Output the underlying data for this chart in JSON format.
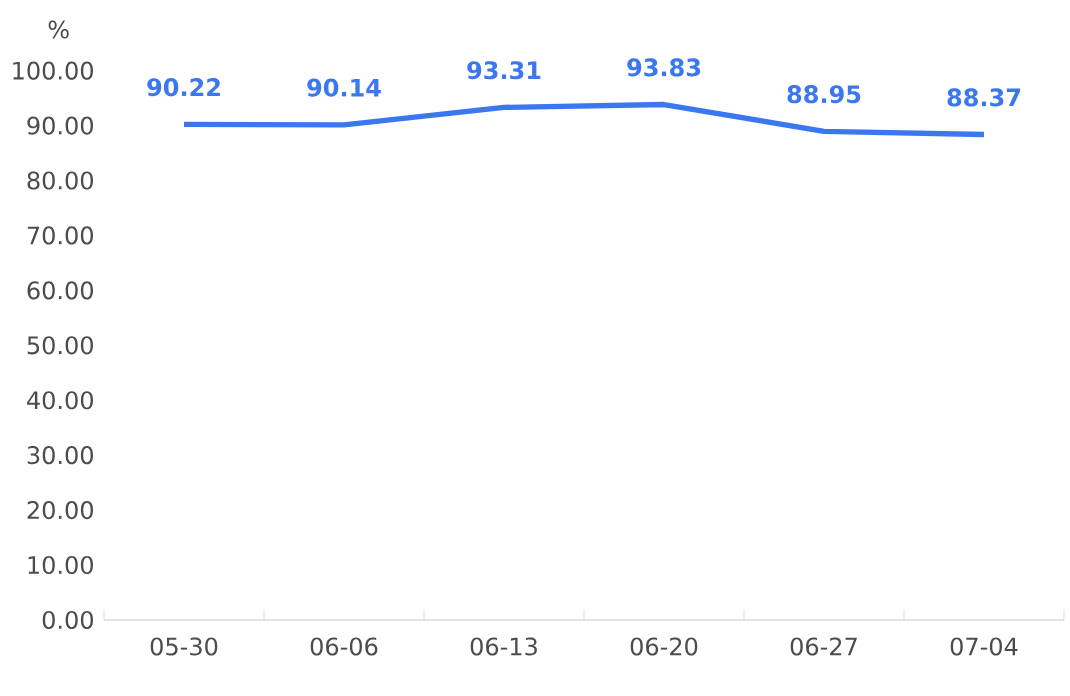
{
  "chart_data": {
    "type": "line",
    "ylabel": "%",
    "categories": [
      "05-30",
      "06-06",
      "06-13",
      "06-20",
      "06-27",
      "07-04"
    ],
    "values": [
      90.22,
      90.14,
      93.31,
      93.83,
      88.95,
      88.37
    ],
    "value_labels": [
      "90.22",
      "90.14",
      "93.31",
      "93.83",
      "88.95",
      "88.37"
    ],
    "color": "#3b78f0",
    "ylim": [
      0,
      100
    ],
    "yticks": [
      {
        "value": 0,
        "label": "0.00"
      },
      {
        "value": 10,
        "label": "10.00"
      },
      {
        "value": 20,
        "label": "20.00"
      },
      {
        "value": 30,
        "label": "30.00"
      },
      {
        "value": 40,
        "label": "40.00"
      },
      {
        "value": 50,
        "label": "50.00"
      },
      {
        "value": 60,
        "label": "60.00"
      },
      {
        "value": 70,
        "label": "70.00"
      },
      {
        "value": 80,
        "label": "80.00"
      },
      {
        "value": 90,
        "label": "90.00"
      },
      {
        "value": 100,
        "label": "100.00"
      }
    ],
    "marker": "none",
    "line_style": "solid"
  }
}
